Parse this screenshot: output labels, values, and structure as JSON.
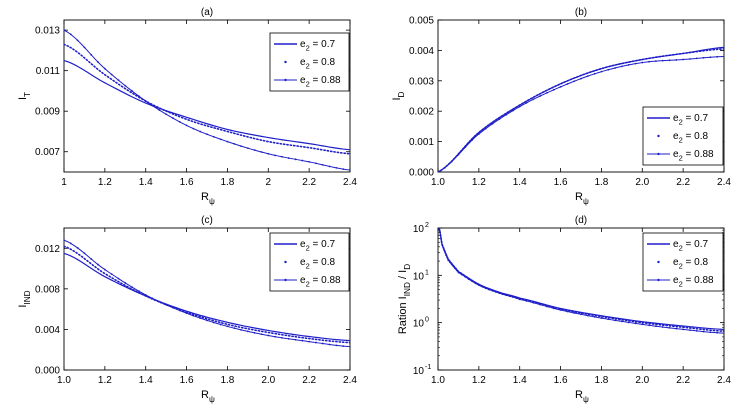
{
  "chart_data": [
    {
      "type": "line",
      "title": "(a)",
      "xlabel": "R",
      "xlabel_sub": "ψ",
      "ylabel": "I",
      "ylabel_sub": "T",
      "xlim": [
        1.0,
        2.4
      ],
      "ylim": [
        0.006,
        0.0135
      ],
      "log_y": false,
      "xticks": [
        1,
        1.2,
        1.4,
        1.6,
        1.8,
        2,
        2.2,
        2.4
      ],
      "xtick_labels": [
        "1",
        "1.2",
        "1.4",
        "1.6",
        "1.8",
        "2",
        "2.2",
        "2.4"
      ],
      "yticks": [
        0.007,
        0.009,
        0.011,
        0.013
      ],
      "ytick_labels": [
        "0.007",
        "0.009",
        "0.011",
        "0.013"
      ],
      "legend": "top-right",
      "x": [
        1.0,
        1.2,
        1.4,
        1.6,
        1.8,
        2.0,
        2.2,
        2.4
      ],
      "series": [
        {
          "name": "e2 = 0.7",
          "legend_main": "e",
          "legend_sub": "2",
          "legend_value": " = 0.7",
          "style": "solid",
          "values": [
            0.0115,
            0.0104,
            0.0094,
            0.0087,
            0.0081,
            0.0077,
            0.0074,
            0.0071
          ]
        },
        {
          "name": "e2 = 0.8",
          "legend_main": "e",
          "legend_sub": "2",
          "legend_value": " = 0.8",
          "style": "dotted",
          "values": [
            0.0123,
            0.0108,
            0.0095,
            0.0086,
            0.008,
            0.0075,
            0.0072,
            0.0069
          ]
        },
        {
          "name": "e2 = 0.88",
          "legend_main": "e",
          "legend_sub": "2",
          "legend_value": " = 0.88",
          "style": "solid-dots",
          "values": [
            0.013,
            0.0111,
            0.0095,
            0.0083,
            0.0075,
            0.0069,
            0.0065,
            0.0061
          ]
        }
      ]
    },
    {
      "type": "line",
      "title": "(b)",
      "xlabel": "R",
      "xlabel_sub": "ψ",
      "ylabel": "I",
      "ylabel_sub": "D",
      "xlim": [
        1.0,
        2.4
      ],
      "ylim": [
        0.0,
        0.005
      ],
      "log_y": false,
      "xticks": [
        1.0,
        1.2,
        1.4,
        1.6,
        1.8,
        2.0,
        2.2,
        2.4
      ],
      "xtick_labels": [
        "1.0",
        "1.2",
        "1.4",
        "1.6",
        "1.8",
        "2.0",
        "2.2",
        "2.4"
      ],
      "yticks": [
        0.0,
        0.001,
        0.002,
        0.003,
        0.004,
        0.005
      ],
      "ytick_labels": [
        "0.000",
        "0.001",
        "0.002",
        "0.003",
        "0.004",
        "0.005"
      ],
      "legend": "bottom-right",
      "x": [
        1.0,
        1.2,
        1.4,
        1.6,
        1.8,
        2.0,
        2.2,
        2.4
      ],
      "series": [
        {
          "name": "e2 = 0.7",
          "legend_main": "e",
          "legend_sub": "2",
          "legend_value": " = 0.7",
          "style": "solid",
          "values": [
            0.0,
            0.0013,
            0.0022,
            0.0029,
            0.0034,
            0.0037,
            0.0039,
            0.0041
          ]
        },
        {
          "name": "e2 = 0.8",
          "legend_main": "e",
          "legend_sub": "2",
          "legend_value": " = 0.8",
          "style": "dotted",
          "values": [
            0.0,
            0.0013,
            0.0022,
            0.0029,
            0.0034,
            0.0037,
            0.0039,
            0.00405
          ]
        },
        {
          "name": "e2 = 0.88",
          "legend_main": "e",
          "legend_sub": "2",
          "legend_value": " = 0.88",
          "style": "solid-dots",
          "values": [
            0.0,
            0.00125,
            0.00215,
            0.0028,
            0.0033,
            0.0036,
            0.0037,
            0.0038
          ]
        }
      ]
    },
    {
      "type": "line",
      "title": "(c)",
      "xlabel": "R",
      "xlabel_sub": "ψ",
      "ylabel": "I",
      "ylabel_sub": "IND",
      "xlim": [
        1.0,
        2.4
      ],
      "ylim": [
        0.0,
        0.014
      ],
      "log_y": false,
      "xticks": [
        1.0,
        1.2,
        1.4,
        1.6,
        1.8,
        2.0,
        2.2,
        2.4
      ],
      "xtick_labels": [
        "1.0",
        "1.2",
        "1.4",
        "1.6",
        "1.8",
        "2.0",
        "2.2",
        "2.4"
      ],
      "yticks": [
        0.0,
        0.004,
        0.008,
        0.012
      ],
      "ytick_labels": [
        "0.000",
        "0.004",
        "0.008",
        "0.012"
      ],
      "legend": "top-right",
      "x": [
        1.0,
        1.2,
        1.4,
        1.6,
        1.8,
        2.0,
        2.2,
        2.4
      ],
      "series": [
        {
          "name": "e2 = 0.7",
          "legend_main": "e",
          "legend_sub": "2",
          "legend_value": " = 0.7",
          "style": "solid",
          "values": [
            0.0115,
            0.0092,
            0.0073,
            0.0058,
            0.0047,
            0.0039,
            0.0033,
            0.0029
          ]
        },
        {
          "name": "e2 = 0.8",
          "legend_main": "e",
          "legend_sub": "2",
          "legend_value": " = 0.8",
          "style": "dotted",
          "values": [
            0.0122,
            0.0095,
            0.0073,
            0.0057,
            0.0045,
            0.0037,
            0.0031,
            0.0027
          ]
        },
        {
          "name": "e2 = 0.88",
          "legend_main": "e",
          "legend_sub": "2",
          "legend_value": " = 0.88",
          "style": "solid-dots",
          "values": [
            0.0128,
            0.0099,
            0.0074,
            0.0056,
            0.0043,
            0.0034,
            0.0028,
            0.0023
          ]
        }
      ]
    },
    {
      "type": "line",
      "title": "(d)",
      "xlabel": "R",
      "xlabel_sub": "ψ",
      "ylabel": "Ration I",
      "ylabel_sub": "IND",
      "ylabel_tail": " / I",
      "ylabel_tail_sub": "D",
      "xlim": [
        1.0,
        2.4
      ],
      "ylim": [
        0.1,
        100
      ],
      "log_y": true,
      "xticks": [
        1.0,
        1.2,
        1.4,
        1.6,
        1.8,
        2.0,
        2.2,
        2.4
      ],
      "xtick_labels": [
        "1.0",
        "1.2",
        "1.4",
        "1.6",
        "1.8",
        "2.0",
        "2.2",
        "2.4"
      ],
      "yticks": [
        0.1,
        1,
        10,
        100
      ],
      "ytick_labels": [
        {
          "base": "10",
          "exp": "-1"
        },
        {
          "base": "10",
          "exp": "0"
        },
        {
          "base": "10",
          "exp": "1"
        },
        {
          "base": "10",
          "exp": "2"
        }
      ],
      "legend": "top-right",
      "x": [
        1.005,
        1.02,
        1.05,
        1.1,
        1.2,
        1.3,
        1.4,
        1.6,
        1.8,
        2.0,
        2.2,
        2.4
      ],
      "series": [
        {
          "name": "e2 = 0.7",
          "legend_main": "e",
          "legend_sub": "2",
          "legend_value": " = 0.7",
          "style": "solid",
          "values": [
            100,
            45,
            22,
            12,
            6.5,
            4.4,
            3.3,
            2.0,
            1.4,
            1.05,
            0.85,
            0.72
          ]
        },
        {
          "name": "e2 = 0.8",
          "legend_main": "e",
          "legend_sub": "2",
          "legend_value": " = 0.8",
          "style": "dotted",
          "values": [
            100,
            45,
            22,
            12,
            6.4,
            4.3,
            3.25,
            1.95,
            1.35,
            1.0,
            0.8,
            0.66
          ]
        },
        {
          "name": "e2 = 0.88",
          "legend_main": "e",
          "legend_sub": "2",
          "legend_value": " = 0.88",
          "style": "solid-dots",
          "values": [
            100,
            44,
            21,
            11.5,
            6.2,
            4.2,
            3.1,
            1.85,
            1.25,
            0.92,
            0.72,
            0.6
          ]
        }
      ]
    }
  ],
  "colors": {
    "line": "#1f1fc8",
    "axis": "#000000"
  }
}
